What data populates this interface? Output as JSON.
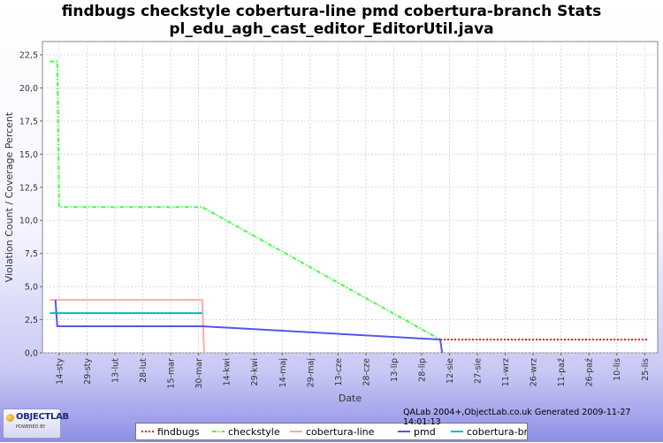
{
  "chart_data": {
    "type": "line",
    "title": "findbugs checkstyle cobertura-line pmd cobertura-branch  Stats",
    "subtitle": "pl_edu_agh_cast_editor_EditorUtil.java",
    "xlabel": "Date",
    "ylabel": "Violation Count / Coverage Percent",
    "ylim": [
      0,
      23.5
    ],
    "yticks": [
      0.0,
      2.5,
      5.0,
      7.5,
      10.0,
      12.5,
      15.0,
      17.5,
      20.0,
      22.5
    ],
    "ytick_labels": [
      "0,0",
      "2,5",
      "5,0",
      "7,5",
      "10,0",
      "12,5",
      "15,0",
      "17,5",
      "20,0",
      "22,5"
    ],
    "xlim": [
      "2009-01-05",
      "2009-12-02"
    ],
    "xticks": [
      "2009-01-14",
      "2009-01-29",
      "2009-02-13",
      "2009-02-28",
      "2009-03-15",
      "2009-03-30",
      "2009-04-14",
      "2009-04-29",
      "2009-05-14",
      "2009-05-29",
      "2009-06-13",
      "2009-06-28",
      "2009-07-13",
      "2009-07-28",
      "2009-08-12",
      "2009-08-27",
      "2009-09-11",
      "2009-09-26",
      "2009-10-11",
      "2009-10-26",
      "2009-11-10",
      "2009-11-25"
    ],
    "xtick_labels": [
      "14-sty",
      "29-sty",
      "13-lut",
      "28-lut",
      "15-mar",
      "30-mar",
      "14-kwi",
      "29-kwi",
      "14-maj",
      "29-maj",
      "13-cze",
      "28-cze",
      "13-lip",
      "28-lip",
      "12-sie",
      "27-sie",
      "11-wrz",
      "26-wrz",
      "11-paź",
      "26-paź",
      "10-lis",
      "25-lis"
    ],
    "grid": true,
    "legend_position": "bottom",
    "series": [
      {
        "name": "findbugs",
        "color": "#ff0000",
        "dash": "dotted",
        "points": [
          [
            "2009-08-07",
            1.0
          ],
          [
            "2009-11-27",
            1.0
          ]
        ]
      },
      {
        "name": "checkstyle",
        "color": "#44ff44",
        "dash": "dashdot",
        "points": [
          [
            "2009-01-09",
            22.0
          ],
          [
            "2009-01-13",
            22.0
          ],
          [
            "2009-01-14",
            11.0
          ],
          [
            "2009-04-01",
            11.0
          ],
          [
            "2009-08-07",
            1.0
          ]
        ]
      },
      {
        "name": "cobertura-line",
        "color": "#ffaaaa",
        "dash": "solid",
        "points": [
          [
            "2009-01-09",
            4.0
          ],
          [
            "2009-04-01",
            4.0
          ],
          [
            "2009-04-02",
            0.0
          ]
        ]
      },
      {
        "name": "pmd",
        "color": "#5555ee",
        "dash": "solid",
        "points": [
          [
            "2009-01-12",
            4.0
          ],
          [
            "2009-01-13",
            2.0
          ],
          [
            "2009-04-01",
            2.0
          ],
          [
            "2009-08-07",
            1.0
          ],
          [
            "2009-08-08",
            0.0
          ]
        ]
      },
      {
        "name": "cobertura-branch",
        "color": "#00bbbb",
        "dash": "solid",
        "points": [
          [
            "2009-01-09",
            3.0
          ],
          [
            "2009-04-01",
            3.0
          ]
        ]
      }
    ]
  },
  "footer": {
    "generated": "QALab 2004+,ObjectLab.co.uk Generated 2009-11-27 14:01:13",
    "logo_main": "OBJECTLAB",
    "logo_sub": "POWERED BY"
  }
}
